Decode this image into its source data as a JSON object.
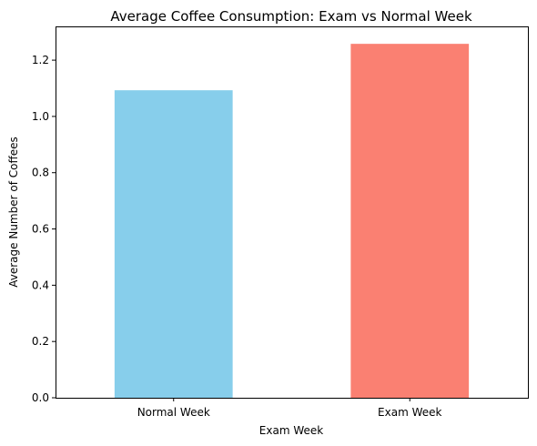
{
  "chart_data": {
    "type": "bar",
    "title": "Average Coffee Consumption: Exam vs Normal Week",
    "xlabel": "Exam Week",
    "ylabel": "Average Number of Coffees",
    "categories": [
      "Normal Week",
      "Exam Week"
    ],
    "values": [
      1.093,
      1.258
    ],
    "colors": [
      "#87ceeb",
      "#fa8072"
    ],
    "ylim": [
      0,
      1.32
    ],
    "yticks": [
      0.0,
      0.2,
      0.4,
      0.6,
      0.8,
      1.0,
      1.2
    ],
    "ytick_labels": [
      "0.0",
      "0.2",
      "0.4",
      "0.6",
      "0.8",
      "1.0",
      "1.2"
    ],
    "grid": false,
    "legend": "none"
  }
}
